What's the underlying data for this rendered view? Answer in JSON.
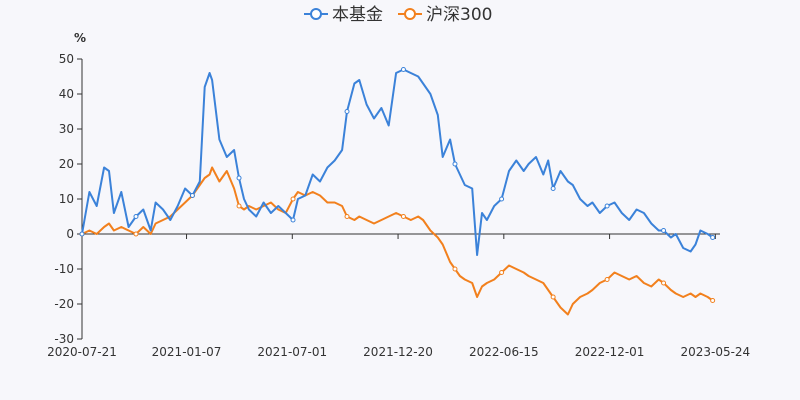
{
  "chart_data": {
    "type": "line",
    "title": "",
    "xlabel": "",
    "ylabel": "%",
    "ylim": [
      -30,
      50
    ],
    "yticks": [
      50,
      40,
      30,
      20,
      10,
      0,
      -10,
      -20,
      -30
    ],
    "xtick_labels": [
      "2020-07-21",
      "2021-01-07",
      "2021-07-01",
      "2021-12-20",
      "2022-06-15",
      "2022-12-01",
      "2023-05-24"
    ],
    "legend_position": "top-center",
    "series": [
      {
        "name": "本基金",
        "color": "#3b82d9",
        "points": [
          [
            0,
            0
          ],
          [
            3,
            12
          ],
          [
            6,
            8
          ],
          [
            9,
            19
          ],
          [
            11,
            18
          ],
          [
            13,
            6
          ],
          [
            16,
            12
          ],
          [
            19,
            2
          ],
          [
            22,
            5
          ],
          [
            25,
            7
          ],
          [
            28,
            1
          ],
          [
            30,
            9
          ],
          [
            33,
            7
          ],
          [
            36,
            4
          ],
          [
            39,
            8
          ],
          [
            42,
            13
          ],
          [
            45,
            11
          ],
          [
            48,
            15
          ],
          [
            50,
            42
          ],
          [
            52,
            46
          ],
          [
            53,
            44
          ],
          [
            56,
            27
          ],
          [
            59,
            22
          ],
          [
            62,
            24
          ],
          [
            64,
            16
          ],
          [
            66,
            10
          ],
          [
            68,
            7
          ],
          [
            71,
            5
          ],
          [
            74,
            9
          ],
          [
            77,
            6
          ],
          [
            80,
            8
          ],
          [
            83,
            6
          ],
          [
            86,
            4
          ],
          [
            88,
            10
          ],
          [
            91,
            11
          ],
          [
            94,
            17
          ],
          [
            97,
            15
          ],
          [
            100,
            19
          ],
          [
            103,
            21
          ],
          [
            106,
            24
          ],
          [
            108,
            35
          ],
          [
            111,
            43
          ],
          [
            113,
            44
          ],
          [
            116,
            37
          ],
          [
            119,
            33
          ],
          [
            122,
            36
          ],
          [
            125,
            31
          ],
          [
            128,
            46
          ],
          [
            131,
            47
          ],
          [
            134,
            46
          ],
          [
            137,
            45
          ],
          [
            139,
            43
          ],
          [
            142,
            40
          ],
          [
            145,
            34
          ],
          [
            147,
            22
          ],
          [
            150,
            27
          ],
          [
            152,
            20
          ],
          [
            154,
            17
          ],
          [
            156,
            14
          ],
          [
            159,
            13
          ],
          [
            161,
            -6
          ],
          [
            163,
            6
          ],
          [
            165,
            4
          ],
          [
            168,
            8
          ],
          [
            171,
            10
          ],
          [
            174,
            18
          ],
          [
            177,
            21
          ],
          [
            180,
            18
          ],
          [
            182,
            20
          ],
          [
            185,
            22
          ],
          [
            188,
            17
          ],
          [
            190,
            21
          ],
          [
            192,
            13
          ],
          [
            195,
            18
          ],
          [
            198,
            15
          ],
          [
            200,
            14
          ],
          [
            203,
            10
          ],
          [
            206,
            8
          ],
          [
            208,
            9
          ],
          [
            211,
            6
          ],
          [
            214,
            8
          ],
          [
            217,
            9
          ],
          [
            220,
            6
          ],
          [
            223,
            4
          ],
          [
            226,
            7
          ],
          [
            229,
            6
          ],
          [
            232,
            3
          ],
          [
            235,
            1
          ],
          [
            237,
            1
          ],
          [
            240,
            -1
          ],
          [
            242,
            0
          ],
          [
            245,
            -4
          ],
          [
            248,
            -5
          ],
          [
            250,
            -3
          ],
          [
            252,
            1
          ],
          [
            255,
            0
          ],
          [
            257,
            -1
          ]
        ]
      },
      {
        "name": "沪深300",
        "color": "#f2801d",
        "points": [
          [
            0,
            0
          ],
          [
            3,
            1
          ],
          [
            6,
            0
          ],
          [
            9,
            2
          ],
          [
            11,
            3
          ],
          [
            13,
            1
          ],
          [
            16,
            2
          ],
          [
            19,
            1
          ],
          [
            22,
            0
          ],
          [
            25,
            2
          ],
          [
            28,
            0
          ],
          [
            30,
            3
          ],
          [
            33,
            4
          ],
          [
            36,
            5
          ],
          [
            39,
            7
          ],
          [
            42,
            9
          ],
          [
            45,
            11
          ],
          [
            48,
            14
          ],
          [
            50,
            16
          ],
          [
            52,
            17
          ],
          [
            53,
            19
          ],
          [
            56,
            15
          ],
          [
            59,
            18
          ],
          [
            62,
            13
          ],
          [
            64,
            8
          ],
          [
            66,
            7
          ],
          [
            68,
            8
          ],
          [
            71,
            7
          ],
          [
            74,
            8
          ],
          [
            77,
            9
          ],
          [
            80,
            7
          ],
          [
            83,
            6
          ],
          [
            86,
            10
          ],
          [
            88,
            12
          ],
          [
            91,
            11
          ],
          [
            94,
            12
          ],
          [
            97,
            11
          ],
          [
            100,
            9
          ],
          [
            103,
            9
          ],
          [
            106,
            8
          ],
          [
            108,
            5
          ],
          [
            111,
            4
          ],
          [
            113,
            5
          ],
          [
            116,
            4
          ],
          [
            119,
            3
          ],
          [
            122,
            4
          ],
          [
            125,
            5
          ],
          [
            128,
            6
          ],
          [
            131,
            5
          ],
          [
            134,
            4
          ],
          [
            137,
            5
          ],
          [
            139,
            4
          ],
          [
            142,
            1
          ],
          [
            145,
            -1
          ],
          [
            147,
            -3
          ],
          [
            150,
            -8
          ],
          [
            152,
            -10
          ],
          [
            154,
            -12
          ],
          [
            156,
            -13
          ],
          [
            159,
            -14
          ],
          [
            161,
            -18
          ],
          [
            163,
            -15
          ],
          [
            165,
            -14
          ],
          [
            168,
            -13
          ],
          [
            171,
            -11
          ],
          [
            174,
            -9
          ],
          [
            177,
            -10
          ],
          [
            180,
            -11
          ],
          [
            182,
            -12
          ],
          [
            185,
            -13
          ],
          [
            188,
            -14
          ],
          [
            190,
            -16
          ],
          [
            192,
            -18
          ],
          [
            195,
            -21
          ],
          [
            198,
            -23
          ],
          [
            200,
            -20
          ],
          [
            203,
            -18
          ],
          [
            206,
            -17
          ],
          [
            208,
            -16
          ],
          [
            211,
            -14
          ],
          [
            214,
            -13
          ],
          [
            217,
            -11
          ],
          [
            220,
            -12
          ],
          [
            223,
            -13
          ],
          [
            226,
            -12
          ],
          [
            229,
            -14
          ],
          [
            232,
            -15
          ],
          [
            235,
            -13
          ],
          [
            237,
            -14
          ],
          [
            240,
            -16
          ],
          [
            242,
            -17
          ],
          [
            245,
            -18
          ],
          [
            248,
            -17
          ],
          [
            250,
            -18
          ],
          [
            252,
            -17
          ],
          [
            255,
            -18
          ],
          [
            257,
            -19
          ]
        ]
      }
    ]
  }
}
